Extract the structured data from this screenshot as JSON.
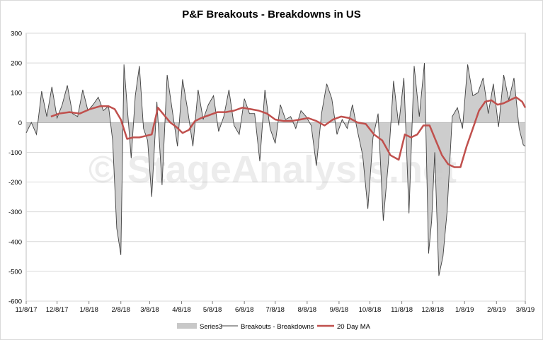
{
  "chart_data": {
    "type": "line",
    "title": "P&F Breakouts - Breakdowns in US",
    "watermark": "© StageAnalysis.net",
    "ylim": [
      -600,
      300
    ],
    "yticks": [
      300,
      200,
      100,
      0,
      -100,
      -200,
      -300,
      -400,
      -500,
      -600
    ],
    "ytick_labels": [
      "300",
      "200",
      "100",
      "0",
      "-100",
      "-200",
      "-300",
      "-400",
      "-500",
      "-600"
    ],
    "xlim": [
      "2017-11-08",
      "2019-03-08"
    ],
    "xticks": [
      "2017-11-08",
      "2017-12-08",
      "2018-01-08",
      "2018-02-08",
      "2018-03-08",
      "2018-04-08",
      "2018-05-08",
      "2018-06-08",
      "2018-07-08",
      "2018-08-08",
      "2018-09-08",
      "2018-10-08",
      "2018-11-08",
      "2018-12-08",
      "2019-01-08",
      "2019-02-08",
      "2019-03-08"
    ],
    "xtick_labels": [
      "11/8/17",
      "12/8/17",
      "1/8/18",
      "2/8/18",
      "3/8/18",
      "4/8/18",
      "5/8/18",
      "6/8/18",
      "7/8/18",
      "8/8/18",
      "9/8/18",
      "10/8/18",
      "11/8/18",
      "12/8/18",
      "1/8/19",
      "2/8/19",
      "3/8/19"
    ],
    "grid": true,
    "legend_position": "bottom",
    "series": [
      {
        "name": "Series3",
        "style": "area",
        "color": "#c8c8c8",
        "x": [
          "2017-11-08",
          "2017-11-13",
          "2017-11-18",
          "2017-11-23",
          "2017-11-28",
          "2017-12-03",
          "2017-12-08",
          "2017-12-13",
          "2017-12-18",
          "2017-12-23",
          "2017-12-28",
          "2018-01-02",
          "2018-01-07",
          "2018-01-12",
          "2018-01-17",
          "2018-01-22",
          "2018-01-27",
          "2018-01-31",
          "2018-02-04",
          "2018-02-08",
          "2018-02-11",
          "2018-02-14",
          "2018-02-18",
          "2018-02-22",
          "2018-02-26",
          "2018-03-02",
          "2018-03-06",
          "2018-03-10",
          "2018-03-15",
          "2018-03-20",
          "2018-03-25",
          "2018-03-30",
          "2018-04-04",
          "2018-04-09",
          "2018-04-14",
          "2018-04-19",
          "2018-04-24",
          "2018-04-29",
          "2018-05-04",
          "2018-05-09",
          "2018-05-14",
          "2018-05-19",
          "2018-05-24",
          "2018-05-29",
          "2018-06-03",
          "2018-06-08",
          "2018-06-13",
          "2018-06-18",
          "2018-06-23",
          "2018-06-28",
          "2018-07-03",
          "2018-07-08",
          "2018-07-13",
          "2018-07-18",
          "2018-07-23",
          "2018-07-28",
          "2018-08-02",
          "2018-08-07",
          "2018-08-12",
          "2018-08-17",
          "2018-08-22",
          "2018-08-27",
          "2018-09-01",
          "2018-09-06",
          "2018-09-11",
          "2018-09-16",
          "2018-09-21",
          "2018-09-26",
          "2018-10-01",
          "2018-10-06",
          "2018-10-11",
          "2018-10-16",
          "2018-10-21",
          "2018-10-26",
          "2018-10-31",
          "2018-11-05",
          "2018-11-10",
          "2018-11-15",
          "2018-11-20",
          "2018-11-25",
          "2018-11-30",
          "2018-12-04",
          "2018-12-07",
          "2018-12-10",
          "2018-12-14",
          "2018-12-18",
          "2018-12-22",
          "2018-12-27",
          "2019-01-01",
          "2019-01-06",
          "2019-01-11",
          "2019-01-16",
          "2019-01-21",
          "2019-01-26",
          "2019-01-31",
          "2019-02-05",
          "2019-02-10",
          "2019-02-15",
          "2019-02-20",
          "2019-02-25",
          "2019-03-02",
          "2019-03-06",
          "2019-03-08"
        ],
        "values": [
          -35,
          0,
          -40,
          105,
          20,
          120,
          15,
          60,
          125,
          30,
          20,
          110,
          40,
          60,
          85,
          40,
          55,
          -60,
          -355,
          -445,
          195,
          60,
          -120,
          90,
          190,
          -20,
          -60,
          -250,
          70,
          -210,
          160,
          40,
          -80,
          145,
          40,
          -80,
          110,
          10,
          60,
          90,
          -30,
          20,
          110,
          -10,
          -40,
          80,
          30,
          30,
          -130,
          110,
          -20,
          -70,
          60,
          10,
          20,
          -20,
          40,
          20,
          -10,
          -145,
          30,
          130,
          80,
          -40,
          10,
          -20,
          60,
          -30,
          -110,
          -290,
          -50,
          30,
          -330,
          -130,
          140,
          -10,
          150,
          -305,
          190,
          20,
          200,
          -440,
          -330,
          -100,
          -515,
          -450,
          -300,
          20,
          50,
          -20,
          195,
          90,
          100,
          150,
          30,
          130,
          -15,
          160,
          75,
          150,
          -20,
          -75,
          -80
        ],
        "note": "Area fill drawn from the Breakouts - Breakdowns values"
      },
      {
        "name": "Breakouts - Breakdowns",
        "style": "line",
        "color": "#404040"
      },
      {
        "name": "20 Day MA",
        "style": "line",
        "color": "#c0504d",
        "x": [
          "2017-12-02",
          "2017-12-10",
          "2017-12-20",
          "2017-12-30",
          "2018-01-09",
          "2018-01-19",
          "2018-01-27",
          "2018-02-02",
          "2018-02-08",
          "2018-02-14",
          "2018-02-20",
          "2018-02-26",
          "2018-03-04",
          "2018-03-10",
          "2018-03-16",
          "2018-03-22",
          "2018-03-28",
          "2018-04-03",
          "2018-04-09",
          "2018-04-15",
          "2018-04-21",
          "2018-04-27",
          "2018-05-05",
          "2018-05-13",
          "2018-05-21",
          "2018-05-29",
          "2018-06-06",
          "2018-06-14",
          "2018-06-22",
          "2018-06-30",
          "2018-07-08",
          "2018-07-16",
          "2018-07-24",
          "2018-08-01",
          "2018-08-09",
          "2018-08-17",
          "2018-08-25",
          "2018-09-02",
          "2018-09-10",
          "2018-09-18",
          "2018-09-26",
          "2018-10-04",
          "2018-10-12",
          "2018-10-20",
          "2018-10-28",
          "2018-11-05",
          "2018-11-11",
          "2018-11-17",
          "2018-11-23",
          "2018-11-29",
          "2018-12-05",
          "2018-12-11",
          "2018-12-17",
          "2018-12-23",
          "2018-12-29",
          "2019-01-04",
          "2019-01-10",
          "2019-01-16",
          "2019-01-22",
          "2019-01-28",
          "2019-02-03",
          "2019-02-09",
          "2019-02-15",
          "2019-02-21",
          "2019-02-27",
          "2019-03-05",
          "2019-03-08"
        ],
        "values": [
          20,
          30,
          35,
          30,
          45,
          55,
          55,
          45,
          10,
          -55,
          -50,
          -50,
          -45,
          -40,
          50,
          25,
          0,
          -15,
          -35,
          -25,
          5,
          15,
          25,
          35,
          35,
          40,
          50,
          45,
          40,
          30,
          10,
          5,
          5,
          10,
          15,
          5,
          -10,
          10,
          20,
          15,
          0,
          -5,
          -40,
          -60,
          -110,
          -125,
          -40,
          -50,
          -40,
          -10,
          -10,
          -60,
          -110,
          -140,
          -150,
          -150,
          -80,
          -20,
          40,
          70,
          75,
          60,
          65,
          75,
          85,
          70,
          50
        ]
      }
    ]
  }
}
